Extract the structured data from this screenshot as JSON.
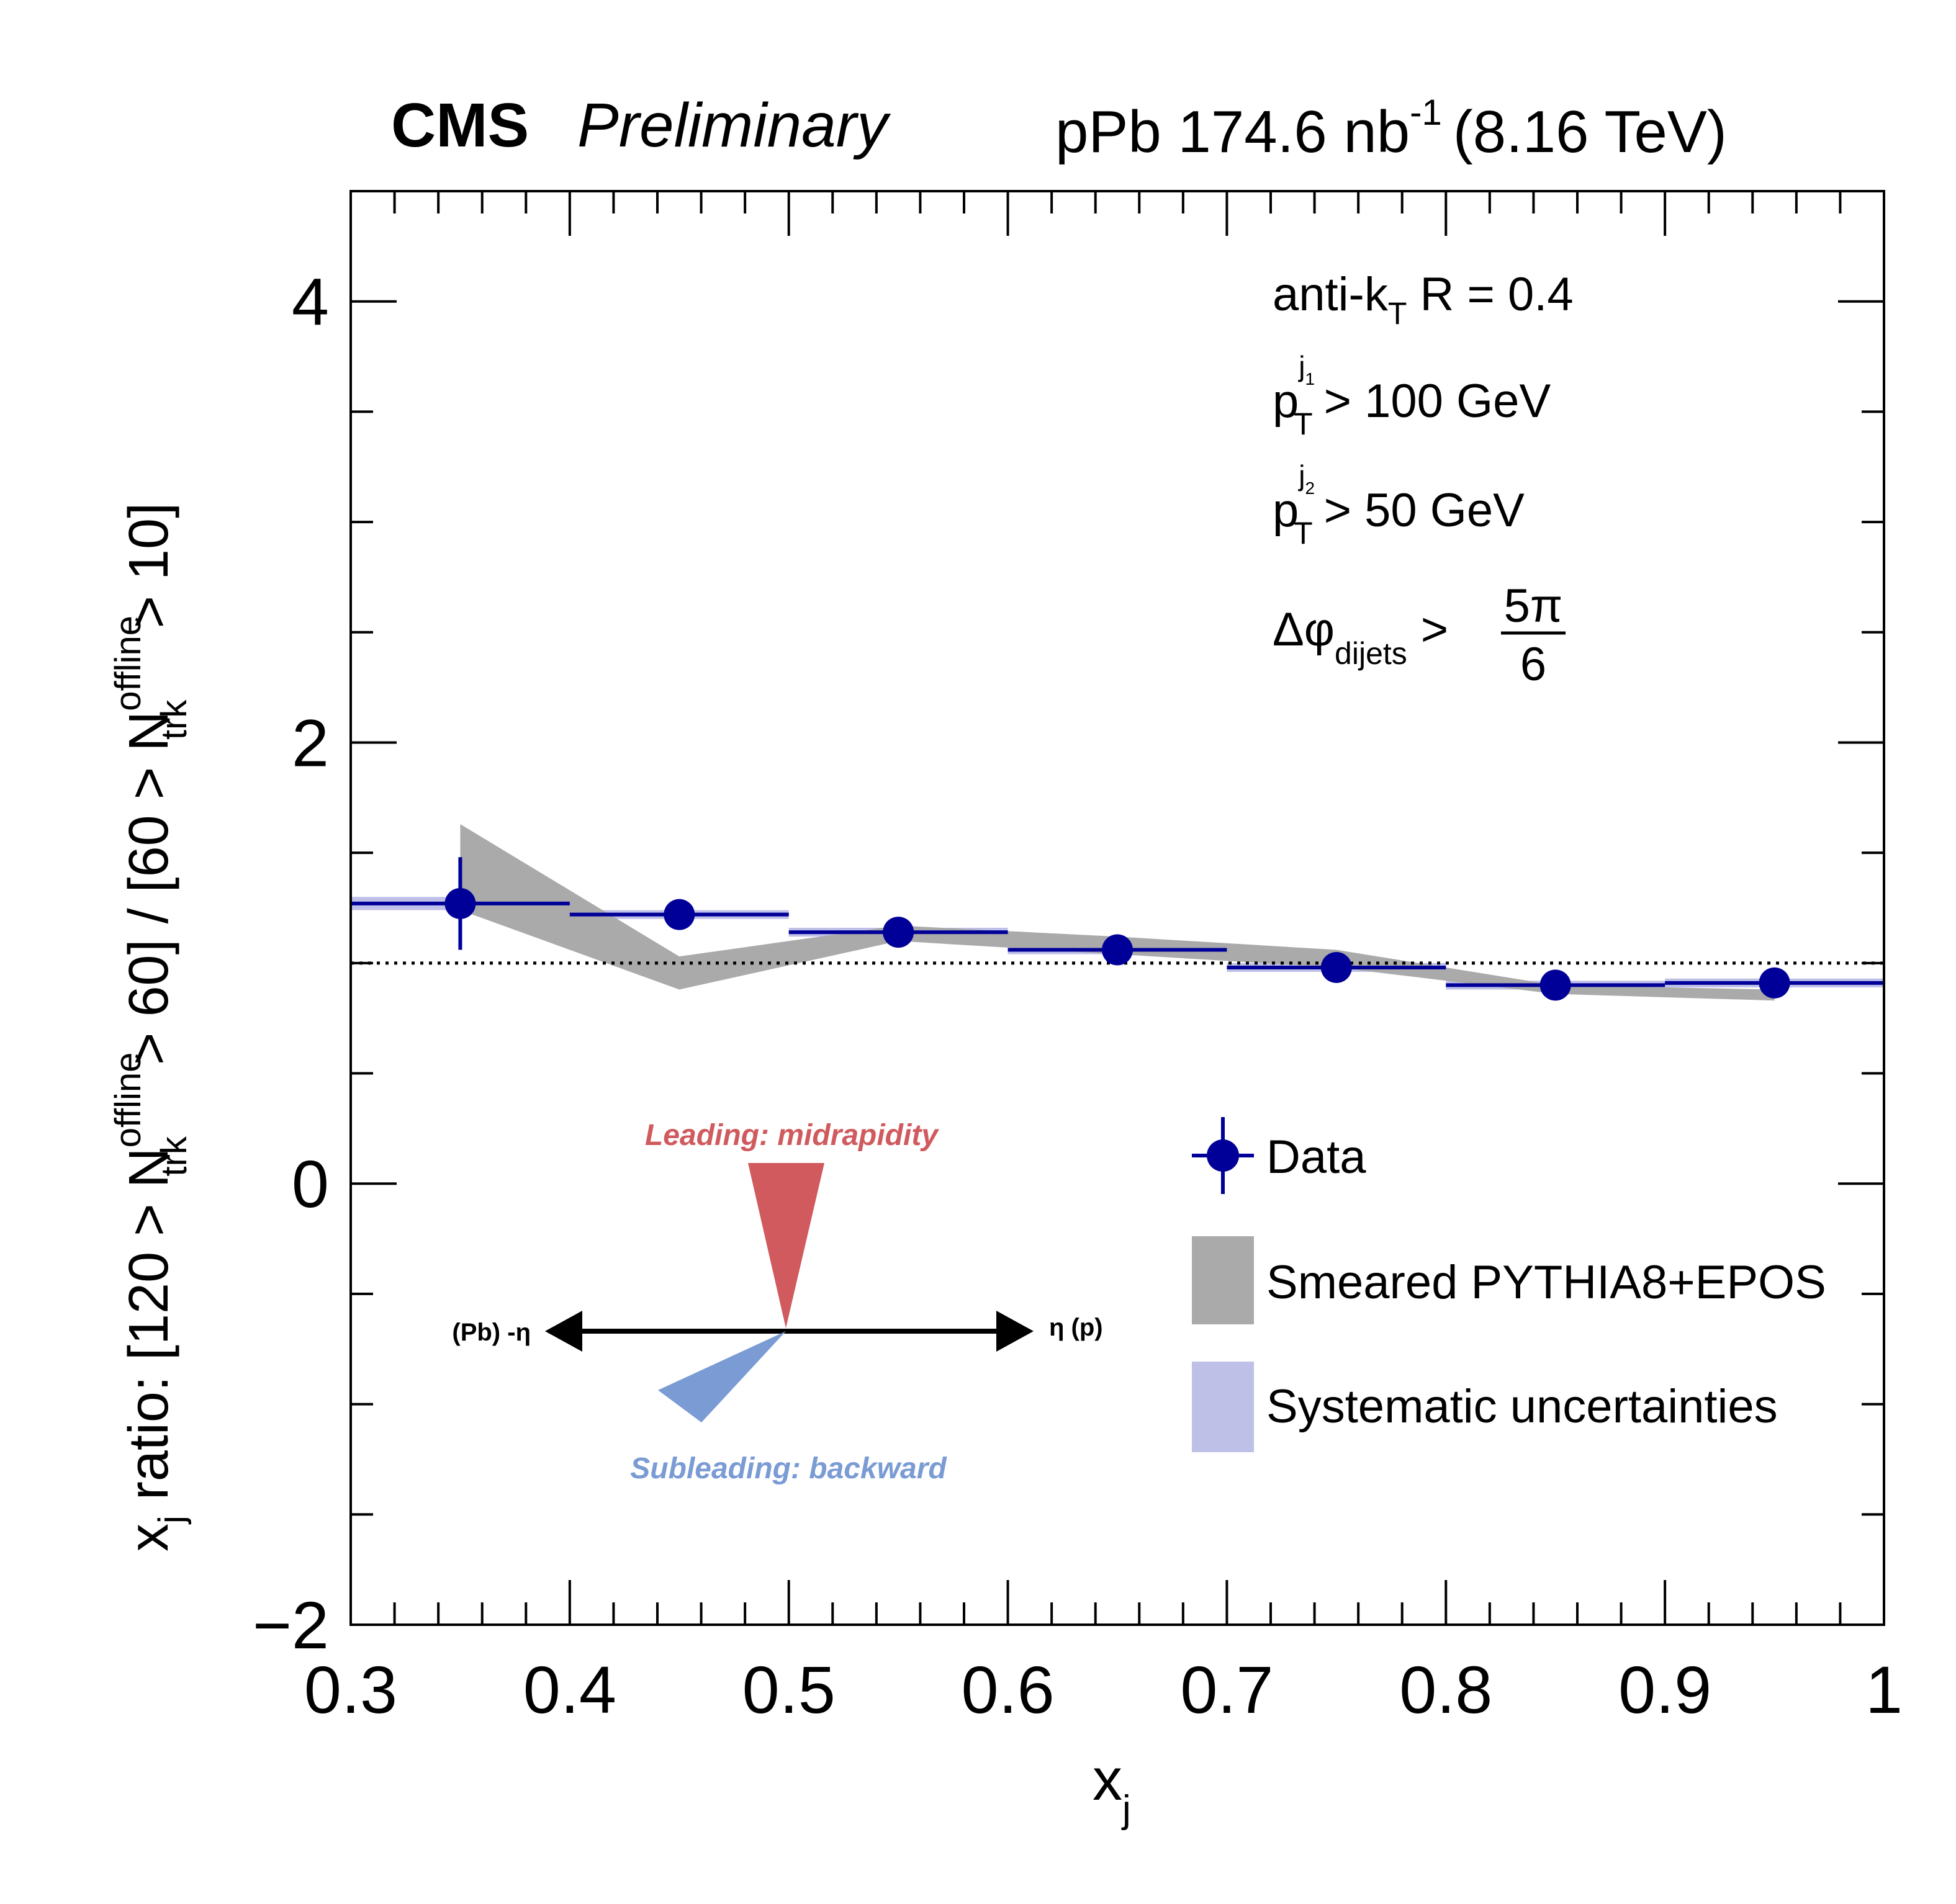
{
  "header": {
    "experiment": "CMS",
    "status": "Preliminary",
    "lumi_prefix": "pPb 174.6 nb",
    "lumi_exp": "-1",
    "energy": "(8.16 TeV)"
  },
  "annotations": {
    "jet_algo_main": "anti-k",
    "jet_algo_sub": "T",
    "jet_algo_rest": " R = 0.4",
    "pt": "p",
    "pt_sub": "T",
    "pt_sup_j": "j",
    "pt1_sup_idx": "1",
    "pt1_rest": "> 100 GeV",
    "pt2_sup_idx": "2",
    "pt2_rest": "> 50 GeV",
    "dphi_main": "Δφ",
    "dphi_sub": "dijets",
    "dphi_gt": ">",
    "dphi_num": "5π",
    "dphi_den": "6"
  },
  "diagram": {
    "leading_label": "Leading: midrapidity",
    "subleading_label": "Subleading: backward",
    "left_label": "(Pb) -η",
    "right_label": "η (p)",
    "leading_color": "#d05a5d",
    "subleading_color": "#7a9bd4"
  },
  "ylabel": {
    "t1": "x",
    "t1_sub": "j",
    "t2": " ratio: [120 > N",
    "n1_sup": "offline",
    "n1_sub": "trk",
    "t3": " > 60] / [60 > N",
    "n2_sup": "offline",
    "n2_sub": "trk",
    "t4": " > 10]"
  },
  "xlabel": {
    "main": "x",
    "sub": "j"
  },
  "legend": {
    "data": "Data",
    "model": "Smeared PYTHIA8+EPOS",
    "syst": "Systematic uncertainties"
  },
  "chart_data": {
    "type": "scatter",
    "xlim": [
      0.3,
      1.0
    ],
    "ylim": [
      -2,
      4.5
    ],
    "x_ticks": [
      0.3,
      0.4,
      0.5,
      0.6,
      0.7,
      0.8,
      0.9,
      1.0
    ],
    "x_tick_labels": [
      "0.3",
      "0.4",
      "0.5",
      "0.6",
      "0.7",
      "0.8",
      "0.9",
      "1"
    ],
    "y_ticks": [
      -2,
      0,
      2,
      4
    ],
    "y_tick_labels": [
      "−2",
      "0",
      "2",
      "4"
    ],
    "reference_line_y": 1.0,
    "series": [
      {
        "name": "Data",
        "color": "#000099",
        "bin_edges": [
          0.3,
          0.4,
          0.5,
          0.6,
          0.7,
          0.8,
          0.9,
          1.0
        ],
        "x": [
          0.35,
          0.45,
          0.55,
          0.65,
          0.75,
          0.85,
          0.95
        ],
        "y": [
          1.27,
          1.22,
          1.14,
          1.06,
          0.98,
          0.9,
          0.91
        ],
        "yerr": [
          0.21,
          0.05,
          0.03,
          0.03,
          0.03,
          0.03,
          0.03
        ],
        "syst": [
          0.03,
          0.02,
          0.02,
          0.02,
          0.02,
          0.02,
          0.02
        ]
      },
      {
        "name": "Smeared PYTHIA8+EPOS",
        "color": "#aaaaaa",
        "x": [
          0.35,
          0.45,
          0.55,
          0.65,
          0.75,
          0.85,
          0.95
        ],
        "upper": [
          1.63,
          1.03,
          1.17,
          1.12,
          1.06,
          0.9,
          0.88
        ],
        "lower": [
          1.24,
          0.88,
          1.1,
          1.04,
          0.98,
          0.86,
          0.83
        ]
      }
    ]
  }
}
